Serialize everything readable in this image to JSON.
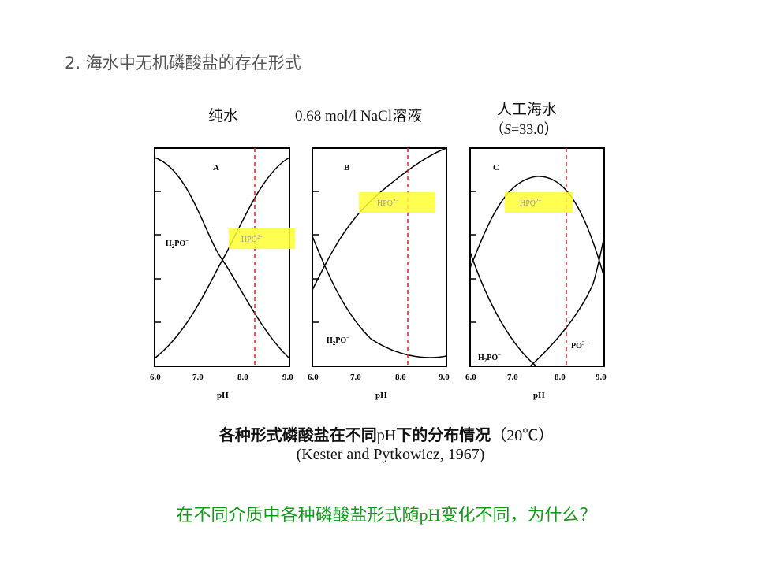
{
  "slide": {
    "title": "2. 海水中无机磷酸盐的存在形式"
  },
  "columns": {
    "pure_water": "纯水",
    "nacl_value": "0.68 mol/l NaCl",
    "nacl_suffix": "溶液",
    "seawater": "人工海水",
    "salinity_open": "（",
    "salinity_symbol": "S",
    "salinity_value": "=33.0）"
  },
  "panels": [
    {
      "letter": "A",
      "highlight": "HPO",
      "label_1": "H",
      "label_1_rest": "PO",
      "ph_label": "pH"
    },
    {
      "letter": "B",
      "highlight": "HPO",
      "label_1": "H",
      "label_1_rest": "PO",
      "ph_label": "pH"
    },
    {
      "letter": "C",
      "highlight": "HPO",
      "label_1": "H",
      "label_1_rest": "PO",
      "label_2": "PO",
      "ph_label": "pH"
    }
  ],
  "ion_charges": {
    "h2po4": "−",
    "hpo4": "2−",
    "po4": "3−",
    "h2_sub": "2",
    "sub_4": "4"
  },
  "ticks": [
    "6.0",
    "7.0",
    "8.0",
    "9.0"
  ],
  "caption": {
    "part1": "各种形式磷酸盐在不同",
    "ph": "pH",
    "part2": "下的分布情况",
    "temp": "（20℃）",
    "source": "(Kester and Pytkowicz, 1967)"
  },
  "question": {
    "part1": "在不同介质中各种磷酸盐形式随",
    "ph": "pH",
    "part2": "变化不同，为什么？"
  },
  "colors": {
    "question": "#139a1c",
    "highlight": "#ffff33",
    "marker_line": "#e02020",
    "title": "#555555"
  }
}
